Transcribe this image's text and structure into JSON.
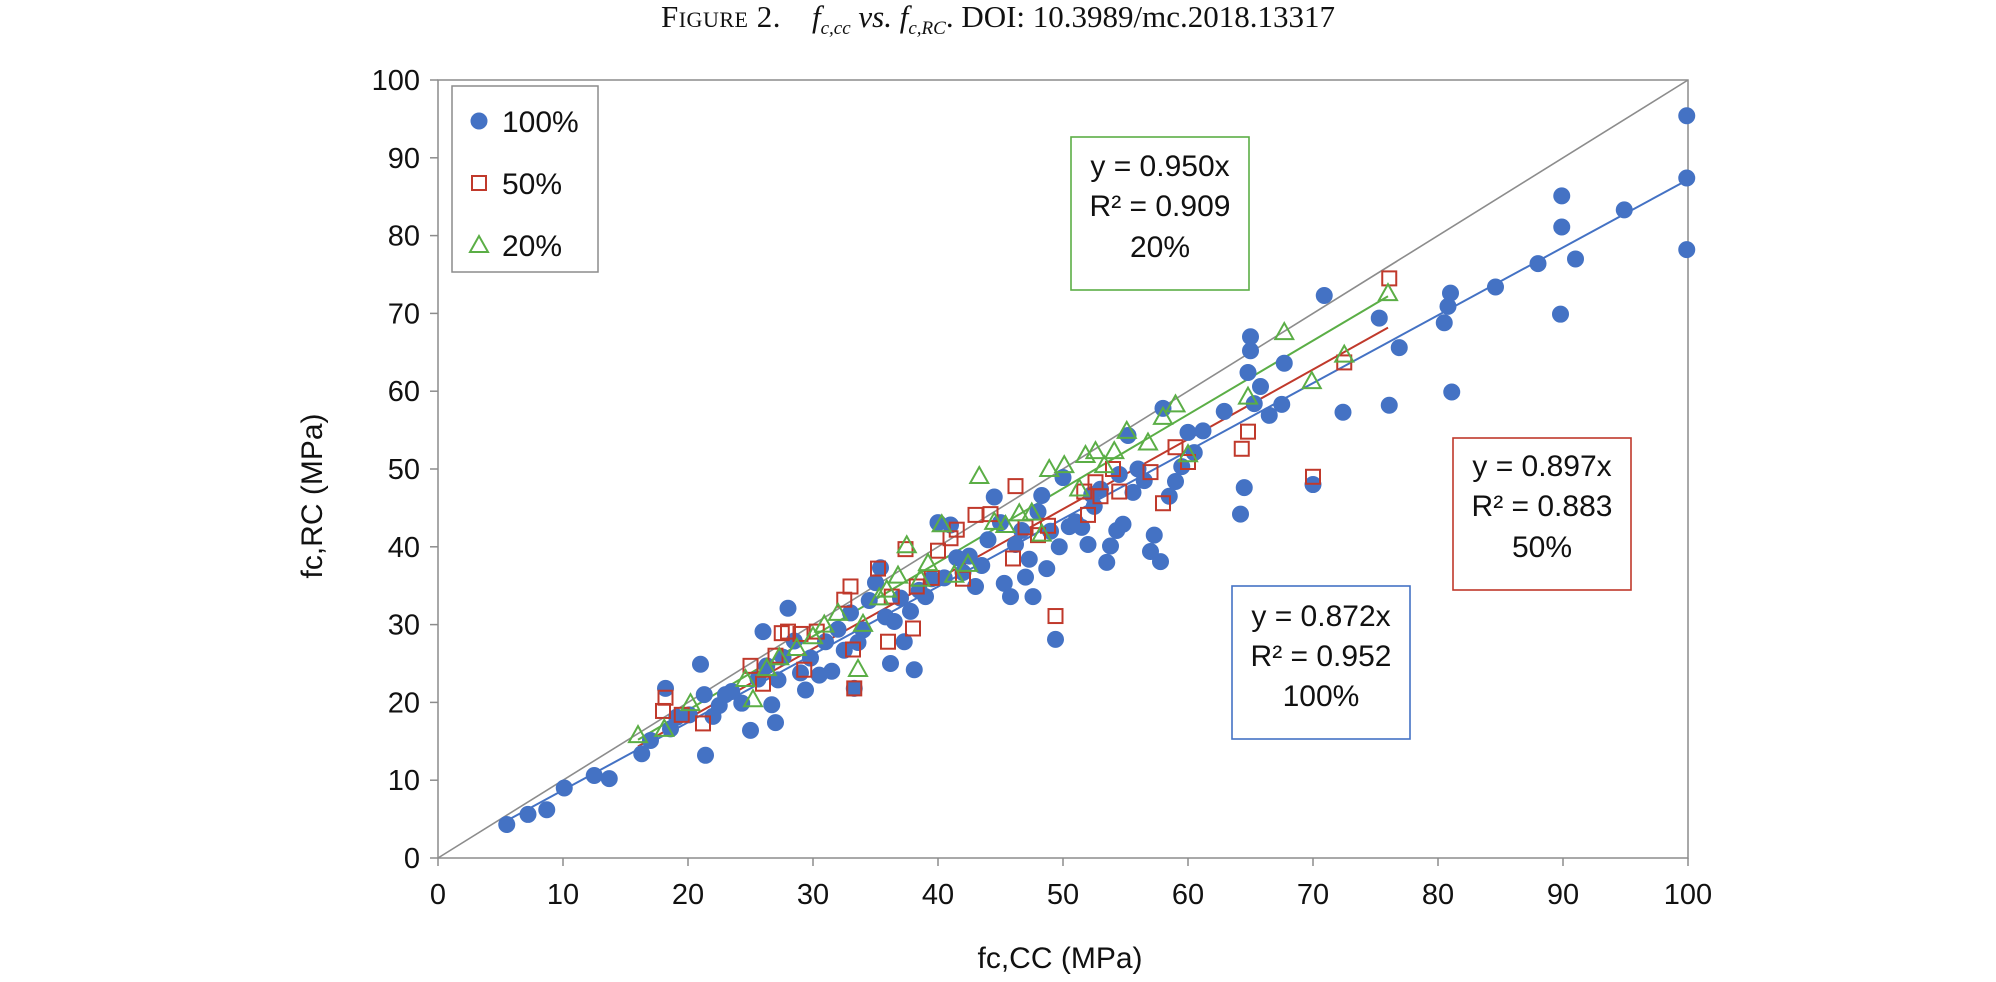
{
  "caption": {
    "label": "Figure 2.",
    "f": "f",
    "sub1": "c,cc",
    "vs": "vs.",
    "sub2": "c,RC",
    "doi": ". DOI: 10.3989/mc.2018.13317"
  },
  "chart_data": {
    "type": "scatter",
    "xlabel": "fc,CC (MPa)",
    "ylabel": "fc,RC (MPa)",
    "xlim": [
      0,
      100
    ],
    "ylim": [
      0,
      100
    ],
    "xticks": [
      "0",
      "10",
      "20",
      "30",
      "40",
      "50",
      "60",
      "70",
      "80",
      "90",
      "100"
    ],
    "yticks": [
      "0",
      "10",
      "20",
      "30",
      "40",
      "50",
      "60",
      "70",
      "80",
      "90",
      "100"
    ],
    "grid": false,
    "legend_position": "top-left",
    "reference_line": {
      "slope": 1,
      "color": "#8c8c8c"
    },
    "series": [
      {
        "name": "100%",
        "marker": "circle",
        "color": "#4472C4",
        "trend": {
          "slope": 0.872,
          "x_range": [
            5.5,
            100
          ]
        },
        "annotation": [
          "y = 0.872x",
          "R² = 0.952",
          "100%"
        ],
        "points": [
          [
            5.5,
            4.3
          ],
          [
            7.2,
            5.6
          ],
          [
            8.7,
            6.2
          ],
          [
            10.1,
            9.0
          ],
          [
            12.5,
            10.6
          ],
          [
            13.7,
            10.2
          ],
          [
            16.3,
            13.4
          ],
          [
            17.0,
            15.1
          ],
          [
            18.2,
            21.8
          ],
          [
            18.6,
            16.6
          ],
          [
            19.1,
            18.1
          ],
          [
            20.1,
            18.4
          ],
          [
            21.0,
            24.9
          ],
          [
            21.4,
            13.2
          ],
          [
            21.3,
            21.0
          ],
          [
            22.0,
            18.2
          ],
          [
            22.5,
            19.6
          ],
          [
            23.0,
            21.0
          ],
          [
            23.5,
            21.4
          ],
          [
            24.3,
            19.9
          ],
          [
            25.0,
            16.4
          ],
          [
            25.6,
            23.0
          ],
          [
            26.0,
            29.1
          ],
          [
            26.3,
            24.7
          ],
          [
            26.7,
            19.7
          ],
          [
            27.0,
            17.4
          ],
          [
            27.2,
            22.9
          ],
          [
            27.6,
            25.8
          ],
          [
            28.0,
            32.1
          ],
          [
            28.5,
            27.9
          ],
          [
            29.0,
            23.8
          ],
          [
            29.4,
            21.6
          ],
          [
            29.8,
            25.7
          ],
          [
            30.5,
            23.5
          ],
          [
            31.0,
            27.8
          ],
          [
            31.5,
            24.0
          ],
          [
            32.0,
            29.4
          ],
          [
            32.5,
            26.7
          ],
          [
            33.0,
            31.5
          ],
          [
            33.3,
            21.8
          ],
          [
            33.6,
            27.7
          ],
          [
            34.0,
            29.3
          ],
          [
            34.5,
            33.1
          ],
          [
            35.0,
            35.4
          ],
          [
            35.4,
            37.3
          ],
          [
            35.8,
            31.0
          ],
          [
            36.2,
            25.0
          ],
          [
            36.5,
            30.4
          ],
          [
            37.0,
            33.4
          ],
          [
            37.3,
            27.8
          ],
          [
            37.8,
            31.7
          ],
          [
            38.1,
            24.2
          ],
          [
            38.5,
            34.4
          ],
          [
            39.0,
            33.6
          ],
          [
            39.5,
            35.9
          ],
          [
            40.0,
            43.1
          ],
          [
            40.5,
            36.0
          ],
          [
            41.0,
            42.8
          ],
          [
            41.5,
            38.6
          ],
          [
            42.0,
            36.7
          ],
          [
            42.5,
            38.8
          ],
          [
            43.0,
            34.9
          ],
          [
            43.5,
            37.6
          ],
          [
            44.0,
            40.9
          ],
          [
            44.5,
            46.4
          ],
          [
            45.0,
            43.1
          ],
          [
            45.3,
            35.3
          ],
          [
            45.8,
            33.6
          ],
          [
            46.2,
            40.3
          ],
          [
            46.7,
            42.1
          ],
          [
            47.0,
            36.1
          ],
          [
            47.3,
            38.4
          ],
          [
            47.6,
            33.6
          ],
          [
            48.0,
            44.5
          ],
          [
            48.3,
            46.6
          ],
          [
            48.7,
            37.2
          ],
          [
            49.0,
            42.0
          ],
          [
            49.4,
            28.1
          ],
          [
            49.7,
            40.0
          ],
          [
            50.0,
            48.9
          ],
          [
            50.5,
            42.6
          ],
          [
            51.0,
            43.2
          ],
          [
            51.5,
            42.5
          ],
          [
            52.0,
            40.3
          ],
          [
            52.5,
            45.2
          ],
          [
            53.0,
            47.4
          ],
          [
            53.5,
            38.0
          ],
          [
            53.8,
            40.1
          ],
          [
            54.3,
            42.1
          ],
          [
            54.8,
            42.9
          ],
          [
            55.2,
            54.3
          ],
          [
            55.6,
            47.0
          ],
          [
            56.0,
            50.0
          ],
          [
            56.5,
            48.5
          ],
          [
            57.0,
            39.4
          ],
          [
            57.3,
            41.5
          ],
          [
            57.8,
            38.1
          ],
          [
            58.0,
            57.8
          ],
          [
            58.5,
            46.5
          ],
          [
            59.0,
            48.4
          ],
          [
            59.5,
            50.3
          ],
          [
            60.0,
            54.7
          ],
          [
            60.5,
            52.1
          ],
          [
            61.2,
            54.9
          ],
          [
            62.9,
            57.4
          ],
          [
            64.2,
            44.2
          ],
          [
            64.5,
            47.6
          ],
          [
            64.8,
            62.4
          ],
          [
            65.0,
            67.0
          ],
          [
            65.0,
            65.2
          ],
          [
            65.3,
            58.4
          ],
          [
            65.8,
            60.6
          ],
          [
            66.5,
            56.9
          ],
          [
            67.5,
            58.3
          ],
          [
            67.7,
            63.6
          ],
          [
            70.9,
            72.3
          ],
          [
            72.4,
            57.3
          ],
          [
            75.3,
            69.4
          ],
          [
            76.1,
            58.2
          ],
          [
            76.9,
            65.6
          ],
          [
            80.5,
            68.8
          ],
          [
            80.8,
            70.9
          ],
          [
            81.0,
            72.6
          ],
          [
            81.1,
            59.9
          ],
          [
            84.6,
            73.4
          ],
          [
            88.0,
            76.4
          ],
          [
            89.8,
            69.9
          ],
          [
            89.9,
            81.1
          ],
          [
            89.9,
            85.1
          ],
          [
            91.0,
            77.0
          ],
          [
            94.9,
            83.3
          ],
          [
            99.9,
            95.4
          ],
          [
            99.9,
            87.4
          ],
          [
            99.9,
            78.2
          ],
          [
            70.0,
            48.0
          ],
          [
            54.5,
            49.3
          ],
          [
            52.3,
            46.7
          ]
        ]
      },
      {
        "name": "50%",
        "marker": "square",
        "color": "#C0392B",
        "trend": {
          "slope": 0.897,
          "x_range": [
            16.0,
            76.0
          ]
        },
        "annotation": [
          "y = 0.897x",
          "R² = 0.883",
          "50%"
        ],
        "points": [
          [
            18.0,
            18.9
          ],
          [
            18.2,
            20.6
          ],
          [
            19.5,
            18.4
          ],
          [
            21.2,
            17.3
          ],
          [
            25.0,
            24.7
          ],
          [
            26.0,
            22.4
          ],
          [
            27.0,
            26.0
          ],
          [
            27.5,
            28.9
          ],
          [
            28.0,
            29.1
          ],
          [
            29.0,
            28.8
          ],
          [
            29.3,
            24.2
          ],
          [
            30.3,
            29.1
          ],
          [
            32.5,
            33.2
          ],
          [
            33.0,
            34.9
          ],
          [
            33.2,
            26.8
          ],
          [
            33.3,
            21.8
          ],
          [
            35.2,
            37.2
          ],
          [
            36.0,
            27.8
          ],
          [
            36.3,
            33.6
          ],
          [
            37.4,
            39.7
          ],
          [
            38.0,
            29.5
          ],
          [
            38.3,
            34.9
          ],
          [
            39.5,
            36.0
          ],
          [
            40.0,
            39.5
          ],
          [
            41.0,
            41.1
          ],
          [
            41.5,
            42.2
          ],
          [
            42.0,
            35.9
          ],
          [
            43.0,
            44.1
          ],
          [
            44.2,
            44.2
          ],
          [
            46.2,
            47.8
          ],
          [
            46.0,
            38.5
          ],
          [
            47.0,
            42.5
          ],
          [
            48.0,
            41.5
          ],
          [
            48.8,
            42.7
          ],
          [
            49.4,
            31.1
          ],
          [
            51.7,
            47.1
          ],
          [
            52.0,
            44.1
          ],
          [
            52.6,
            48.3
          ],
          [
            53.0,
            46.5
          ],
          [
            54.0,
            50.0
          ],
          [
            54.5,
            47.1
          ],
          [
            57.0,
            49.6
          ],
          [
            58.0,
            45.6
          ],
          [
            59.0,
            52.8
          ],
          [
            60.0,
            50.9
          ],
          [
            64.3,
            52.6
          ],
          [
            64.8,
            54.8
          ],
          [
            70.0,
            49.0
          ],
          [
            72.5,
            63.7
          ],
          [
            76.1,
            74.5
          ]
        ]
      },
      {
        "name": "20%",
        "marker": "triangle",
        "color": "#5BAE46",
        "trend": {
          "slope": 0.95,
          "x_range": [
            16.0,
            76.0
          ]
        },
        "annotation": [
          "y = 0.950x",
          "R² = 0.909",
          "20%"
        ],
        "points": [
          [
            16.0,
            15.8
          ],
          [
            18.1,
            16.6
          ],
          [
            20.2,
            19.9
          ],
          [
            24.6,
            23.0
          ],
          [
            25.2,
            20.4
          ],
          [
            26.3,
            24.4
          ],
          [
            27.3,
            25.8
          ],
          [
            28.7,
            27.0
          ],
          [
            30.0,
            28.5
          ],
          [
            30.9,
            30.0
          ],
          [
            32.0,
            31.5
          ],
          [
            33.6,
            24.3
          ],
          [
            34.0,
            30.1
          ],
          [
            35.3,
            33.5
          ],
          [
            35.9,
            34.5
          ],
          [
            36.8,
            36.3
          ],
          [
            37.5,
            40.2
          ],
          [
            38.6,
            35.9
          ],
          [
            39.2,
            37.9
          ],
          [
            40.3,
            42.9
          ],
          [
            41.3,
            36.4
          ],
          [
            42.4,
            37.8
          ],
          [
            43.3,
            49.1
          ],
          [
            44.5,
            43.2
          ],
          [
            45.4,
            42.8
          ],
          [
            46.5,
            44.3
          ],
          [
            47.5,
            44.4
          ],
          [
            48.3,
            41.7
          ],
          [
            48.9,
            50.0
          ],
          [
            50.1,
            50.5
          ],
          [
            51.3,
            47.5
          ],
          [
            51.8,
            51.8
          ],
          [
            52.6,
            52.3
          ],
          [
            53.3,
            50.5
          ],
          [
            54.1,
            52.3
          ],
          [
            55.1,
            54.9
          ],
          [
            56.8,
            53.4
          ],
          [
            58.0,
            56.7
          ],
          [
            59.0,
            58.3
          ],
          [
            60.0,
            51.9
          ],
          [
            64.8,
            59.3
          ],
          [
            67.7,
            67.6
          ],
          [
            69.9,
            61.3
          ],
          [
            72.5,
            64.7
          ],
          [
            76.0,
            72.6
          ]
        ]
      }
    ]
  }
}
